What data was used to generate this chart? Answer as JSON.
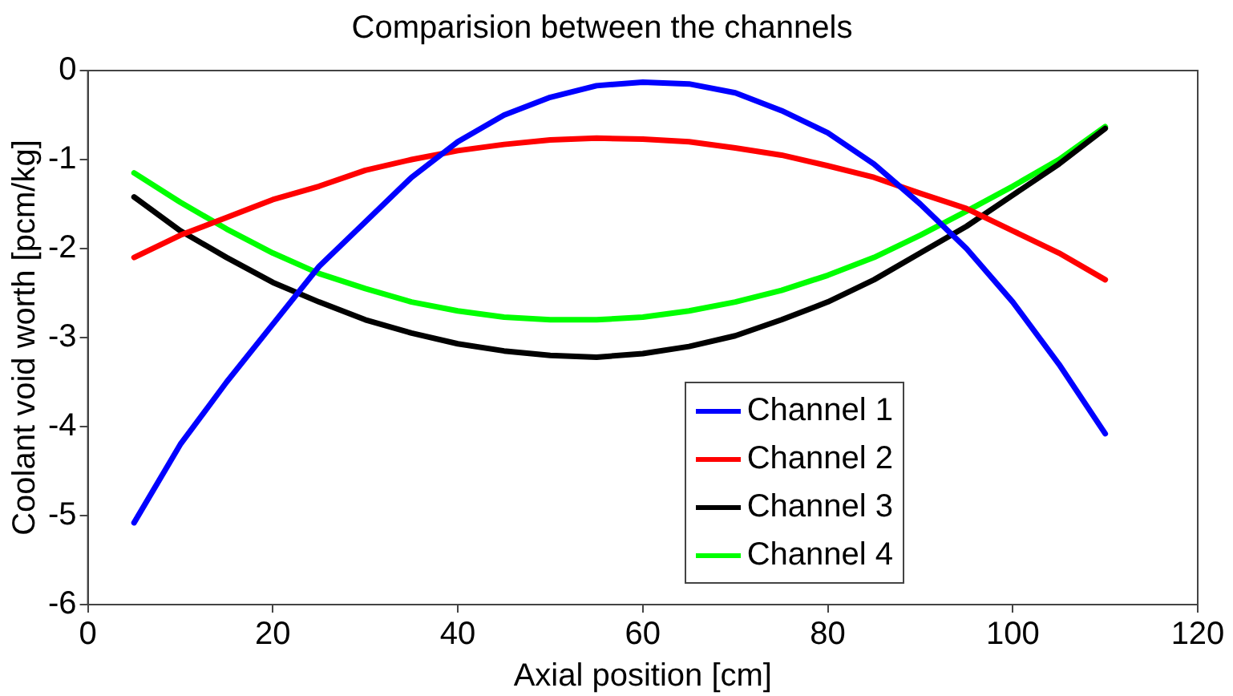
{
  "chart_data": {
    "type": "line",
    "title": "Comparision between the channels",
    "xlabel": "Axial position [cm]",
    "ylabel": "Coolant void worth [pcm/kg]",
    "x": [
      5,
      10,
      15,
      20,
      25,
      30,
      35,
      40,
      45,
      50,
      55,
      60,
      65,
      70,
      75,
      80,
      85,
      90,
      95,
      100,
      105,
      110
    ],
    "series": [
      {
        "name": "Channel 1",
        "color": "#0000ff",
        "values": [
          -5.08,
          -4.2,
          -3.5,
          -2.85,
          -2.2,
          -1.7,
          -1.2,
          -0.8,
          -0.5,
          -0.3,
          -0.17,
          -0.13,
          -0.15,
          -0.25,
          -0.45,
          -0.7,
          -1.05,
          -1.5,
          -2.0,
          -2.6,
          -3.3,
          -4.08
        ]
      },
      {
        "name": "Channel 2",
        "color": "#ff0000",
        "values": [
          -2.1,
          -1.85,
          -1.65,
          -1.45,
          -1.3,
          -1.12,
          -1.0,
          -0.9,
          -0.83,
          -0.78,
          -0.76,
          -0.77,
          -0.8,
          -0.87,
          -0.95,
          -1.07,
          -1.2,
          -1.38,
          -1.55,
          -1.8,
          -2.05,
          -2.35
        ]
      },
      {
        "name": "Channel 3",
        "color": "#000000",
        "values": [
          -1.42,
          -1.8,
          -2.1,
          -2.38,
          -2.6,
          -2.8,
          -2.95,
          -3.07,
          -3.15,
          -3.2,
          -3.22,
          -3.18,
          -3.1,
          -2.98,
          -2.8,
          -2.6,
          -2.35,
          -2.05,
          -1.75,
          -1.4,
          -1.05,
          -0.65
        ]
      },
      {
        "name": "Channel 4",
        "color": "#00ff00",
        "values": [
          -1.15,
          -1.48,
          -1.78,
          -2.05,
          -2.28,
          -2.45,
          -2.6,
          -2.7,
          -2.77,
          -2.8,
          -2.8,
          -2.77,
          -2.7,
          -2.6,
          -2.47,
          -2.3,
          -2.1,
          -1.85,
          -1.58,
          -1.3,
          -1.0,
          -0.63
        ]
      }
    ],
    "xlim": [
      0,
      120
    ],
    "xticks": [
      0,
      20,
      40,
      60,
      80,
      100,
      120
    ],
    "ylim": [
      -6,
      0
    ],
    "yticks": [
      -6,
      -5,
      -4,
      -3,
      -2,
      -1,
      0
    ],
    "grid": false,
    "legend": "bottom right",
    "marker": "none",
    "line_style": "solid"
  }
}
